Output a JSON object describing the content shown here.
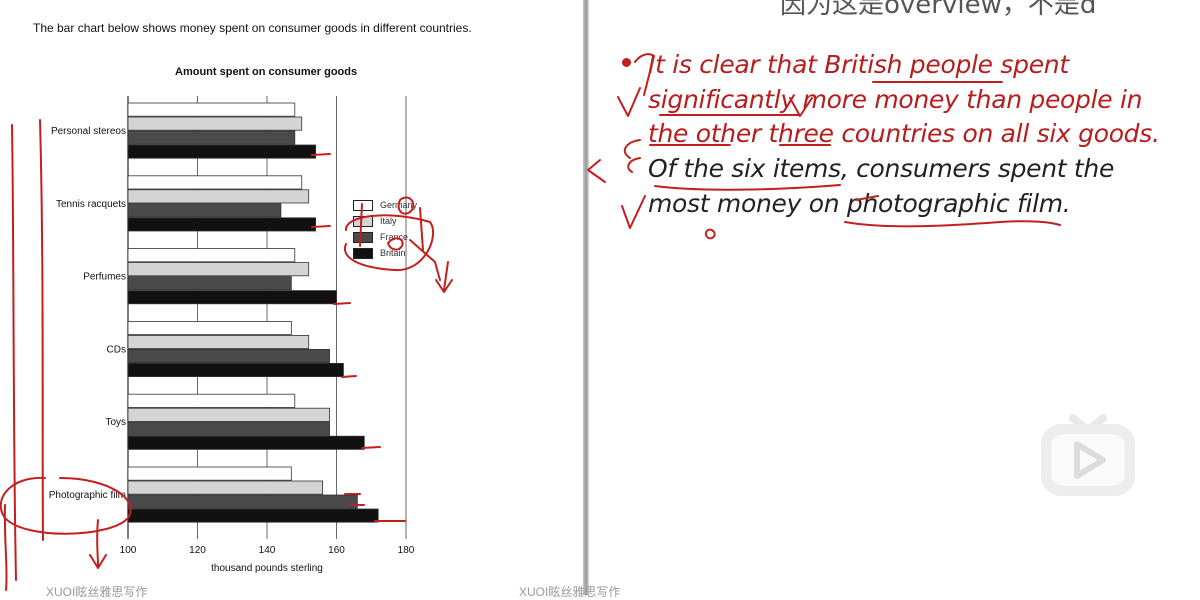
{
  "left_page": {
    "intro": "The bar chart below shows money spent on consumer goods in different countries.",
    "watermark": "XUOI眩丝雅思写作"
  },
  "right_page": {
    "top_cut_text": "因为这是overview，不是d",
    "bullet_line1": "It is clear that British people spent",
    "bullet_line2": "significantly more money than people in",
    "bullet_line3": "the other three countries on all six goods.",
    "line4": "Of the six items, consumers spent the",
    "line5": "most money on photographic film.",
    "watermark": "XUOI眩丝雅思写作"
  },
  "chart_data": {
    "type": "bar",
    "orientation": "horizontal",
    "title": "Amount spent on consumer goods",
    "xlabel": "thousand pounds sterling",
    "ylabel": "",
    "xlim": [
      100,
      180
    ],
    "xticks": [
      100,
      120,
      140,
      160,
      180
    ],
    "grid": true,
    "legend_position": "right-middle",
    "categories": [
      "Personal stereos",
      "Tennis racquets",
      "Perfumes",
      "CDs",
      "Toys",
      "Photographic film"
    ],
    "series": [
      {
        "name": "Germany",
        "color": "#ffffff",
        "values": [
          148,
          150,
          148,
          147,
          148,
          147
        ]
      },
      {
        "name": "Italy",
        "color": "#d4d4d4",
        "values": [
          150,
          152,
          152,
          152,
          158,
          156
        ]
      },
      {
        "name": "France",
        "color": "#4a4a4a",
        "values": [
          148,
          144,
          147,
          158,
          158,
          166
        ]
      },
      {
        "name": "Britain",
        "color": "#111111",
        "values": [
          154,
          154,
          160,
          162,
          168,
          172
        ]
      }
    ]
  },
  "colors": {
    "annotation_red": "#c41f1f",
    "note_red": "#b81c1c",
    "note_dark": "#222222"
  },
  "icons": {
    "play": "play-icon"
  }
}
